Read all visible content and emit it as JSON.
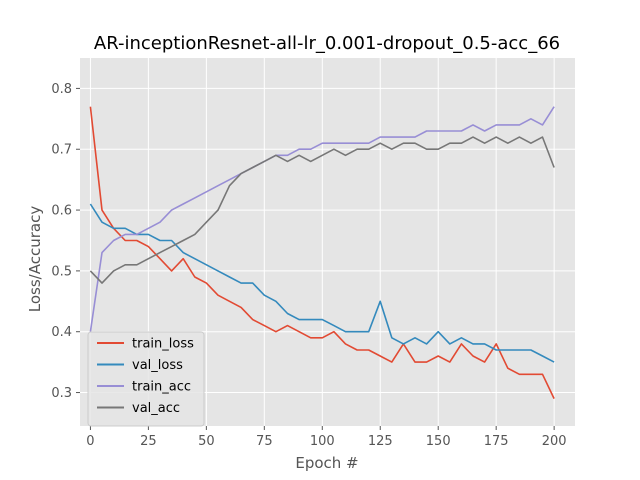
{
  "chart_data": {
    "type": "line",
    "title": "AR-inceptionResnet-all-lr_0.001-dropout_0.5-acc_66",
    "xlabel": "Epoch #",
    "ylabel": "Loss/Accuracy",
    "xlim": [
      -4.5,
      209
    ],
    "ylim": [
      0.245,
      0.85
    ],
    "xticks": [
      0,
      25,
      50,
      75,
      100,
      125,
      150,
      175,
      200
    ],
    "yticks": [
      0.3,
      0.4,
      0.5,
      0.6,
      0.7,
      0.8
    ],
    "x_start": 0,
    "x_step": 5,
    "grid": true,
    "legend_position": "lower-left",
    "style": {
      "background": "#e5e5e5",
      "grid_color": "#ffffff"
    },
    "series": [
      {
        "name": "train_loss",
        "color": "#e24a33",
        "values": [
          0.77,
          0.6,
          0.57,
          0.55,
          0.55,
          0.54,
          0.52,
          0.5,
          0.52,
          0.49,
          0.48,
          0.46,
          0.45,
          0.44,
          0.42,
          0.41,
          0.4,
          0.41,
          0.4,
          0.39,
          0.39,
          0.4,
          0.38,
          0.37,
          0.37,
          0.36,
          0.35,
          0.38,
          0.35,
          0.35,
          0.36,
          0.35,
          0.38,
          0.36,
          0.35,
          0.38,
          0.34,
          0.33,
          0.33,
          0.33,
          0.29
        ]
      },
      {
        "name": "val_loss",
        "color": "#348abd",
        "values": [
          0.61,
          0.58,
          0.57,
          0.57,
          0.56,
          0.56,
          0.55,
          0.55,
          0.53,
          0.52,
          0.51,
          0.5,
          0.49,
          0.48,
          0.48,
          0.46,
          0.45,
          0.43,
          0.42,
          0.42,
          0.42,
          0.41,
          0.4,
          0.4,
          0.4,
          0.45,
          0.39,
          0.38,
          0.39,
          0.38,
          0.4,
          0.38,
          0.39,
          0.38,
          0.38,
          0.37,
          0.37,
          0.37,
          0.37,
          0.36,
          0.35
        ]
      },
      {
        "name": "train_acc",
        "color": "#988ed5",
        "values": [
          0.4,
          0.53,
          0.55,
          0.56,
          0.56,
          0.57,
          0.58,
          0.6,
          0.61,
          0.62,
          0.63,
          0.64,
          0.65,
          0.66,
          0.67,
          0.68,
          0.69,
          0.69,
          0.7,
          0.7,
          0.71,
          0.71,
          0.71,
          0.71,
          0.71,
          0.72,
          0.72,
          0.72,
          0.72,
          0.73,
          0.73,
          0.73,
          0.73,
          0.74,
          0.73,
          0.74,
          0.74,
          0.74,
          0.75,
          0.74,
          0.77
        ]
      },
      {
        "name": "val_acc",
        "color": "#777777",
        "values": [
          0.5,
          0.48,
          0.5,
          0.51,
          0.51,
          0.52,
          0.53,
          0.54,
          0.55,
          0.56,
          0.58,
          0.6,
          0.64,
          0.66,
          0.67,
          0.68,
          0.69,
          0.68,
          0.69,
          0.68,
          0.69,
          0.7,
          0.69,
          0.7,
          0.7,
          0.71,
          0.7,
          0.71,
          0.71,
          0.7,
          0.7,
          0.71,
          0.71,
          0.72,
          0.71,
          0.72,
          0.71,
          0.72,
          0.71,
          0.72,
          0.67
        ]
      }
    ]
  }
}
